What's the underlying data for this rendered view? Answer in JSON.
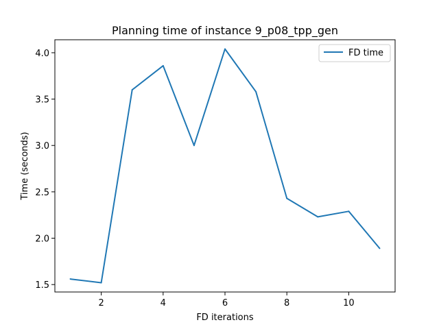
{
  "chart_data": {
    "type": "line",
    "title": "Planning time of instance 9_p08_tpp_gen",
    "xlabel": "FD iterations",
    "ylabel": "Time (seconds)",
    "xlim": [
      0.5,
      11.5
    ],
    "ylim": [
      1.42,
      4.14
    ],
    "xticks": [
      2,
      4,
      6,
      8,
      10
    ],
    "yticks": [
      1.5,
      2.0,
      2.5,
      3.0,
      3.5,
      4.0
    ],
    "xtick_labels": [
      "2",
      "4",
      "6",
      "8",
      "10"
    ],
    "ytick_labels": [
      "1.5",
      "2.0",
      "2.5",
      "3.0",
      "3.5",
      "4.0"
    ],
    "legend_position": "top-right",
    "grid": false,
    "series": [
      {
        "name": "FD time",
        "color": "#1f77b4",
        "x": [
          1,
          2,
          3,
          4,
          5,
          6,
          7,
          8,
          9,
          10,
          11
        ],
        "y": [
          1.56,
          1.52,
          3.6,
          3.86,
          3.0,
          4.04,
          3.58,
          2.43,
          2.23,
          2.29,
          1.89
        ]
      }
    ]
  }
}
